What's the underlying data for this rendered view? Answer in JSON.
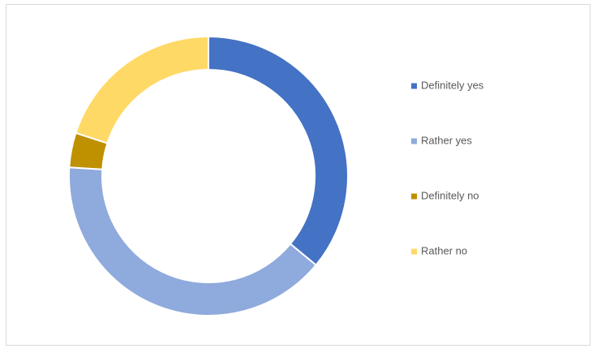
{
  "chart_data": {
    "type": "donut",
    "categories": [
      "Definitely yes",
      "Rather yes",
      "Definitely no",
      "Rather no"
    ],
    "values": [
      36,
      40,
      4,
      20
    ],
    "colors": [
      "#4472c4",
      "#8faadc",
      "#bf9000",
      "#ffd966"
    ],
    "legend": "right"
  }
}
